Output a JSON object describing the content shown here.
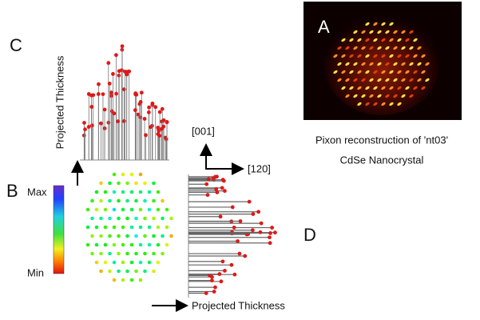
{
  "panel_a": {
    "label": "A",
    "caption_lines": [
      "Pixon reconstruction of 'nt03'",
      "CdSe Nanocrystal"
    ]
  },
  "panel_b": {
    "label": "B",
    "colorbar_max": "Max",
    "colorbar_min": "Min"
  },
  "panel_c": {
    "label": "C",
    "axis_label": "Projected Thickness"
  },
  "panel_d": {
    "label": "D",
    "axis_label": "Projected Thickness"
  },
  "directions": {
    "vertical": "[001]",
    "horizontal": "[120]"
  }
}
